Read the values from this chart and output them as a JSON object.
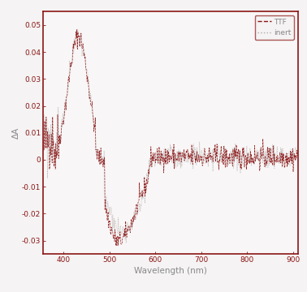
{
  "xlabel": "Wavelength (nm)",
  "ylabel": "ΔA",
  "xlim": [
    355,
    910
  ],
  "ylim": [
    -0.035,
    0.055
  ],
  "xticks": [
    400,
    500,
    600,
    700,
    800,
    900
  ],
  "yticks": [
    -0.03,
    -0.02,
    -0.01,
    0,
    0.01,
    0.02,
    0.03,
    0.04,
    0.05
  ],
  "ttf_color": "#8B1515",
  "inert_color": "#b0a8a8",
  "background_color": "#f5f3f3",
  "plot_bg": "#f8f6f6",
  "legend_labels": [
    "TTF",
    "inert"
  ],
  "border_color": "#8B1515",
  "tick_color": "#8B1515",
  "label_color": "#888888"
}
